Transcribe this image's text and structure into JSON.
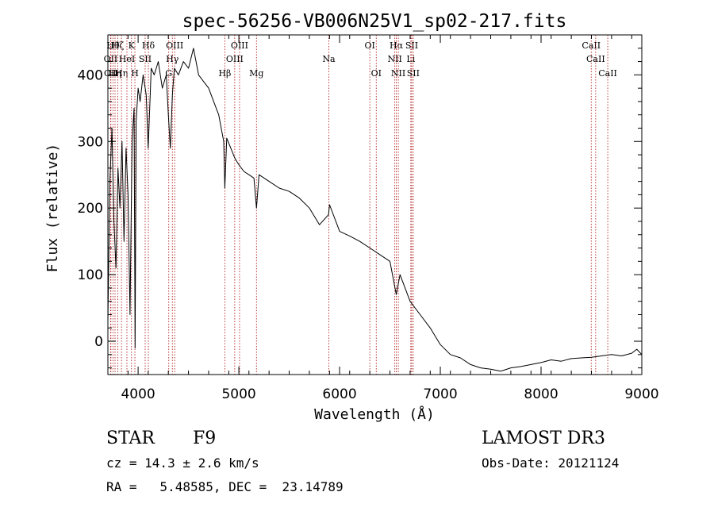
{
  "chart_data": {
    "type": "line",
    "title": "spec-56256-VB006N25V1_sp02-217.fits",
    "xlabel": "Wavelength (Å)",
    "ylabel": "Flux (relative)",
    "xlim": [
      3700,
      9000
    ],
    "ylim": [
      -50,
      460
    ],
    "xticks": [
      4000,
      5000,
      6000,
      7000,
      8000,
      9000
    ],
    "yticks": [
      0,
      100,
      200,
      300,
      400
    ],
    "line_color": "#000000",
    "marker_color": "#b22222",
    "series": [
      {
        "name": "spectrum",
        "x": [
          3700,
          3720,
          3740,
          3760,
          3780,
          3800,
          3820,
          3840,
          3860,
          3880,
          3900,
          3920,
          3940,
          3960,
          3970,
          3980,
          4000,
          4020,
          4050,
          4080,
          4100,
          4130,
          4160,
          4200,
          4240,
          4280,
          4300,
          4320,
          4340,
          4360,
          4400,
          4450,
          4500,
          4550,
          4600,
          4650,
          4700,
          4750,
          4800,
          4850,
          4861,
          4880,
          4920,
          4960,
          5000,
          5050,
          5100,
          5150,
          5175,
          5200,
          5300,
          5400,
          5500,
          5600,
          5700,
          5800,
          5890,
          5900,
          6000,
          6100,
          6200,
          6300,
          6400,
          6500,
          6563,
          6600,
          6650,
          6700,
          6800,
          6900,
          7000,
          7100,
          7200,
          7300,
          7400,
          7500,
          7600,
          7700,
          7800,
          7900,
          8000,
          8100,
          8200,
          8300,
          8400,
          8500,
          8600,
          8700,
          8800,
          8900,
          8950,
          9000
        ],
        "y": [
          30,
          240,
          320,
          180,
          110,
          260,
          200,
          300,
          150,
          290,
          220,
          40,
          300,
          350,
          -10,
          330,
          380,
          360,
          400,
          370,
          290,
          410,
          400,
          420,
          380,
          400,
          340,
          290,
          370,
          410,
          400,
          420,
          410,
          440,
          400,
          390,
          380,
          360,
          340,
          300,
          230,
          305,
          290,
          275,
          265,
          255,
          250,
          245,
          200,
          250,
          240,
          230,
          225,
          215,
          200,
          175,
          190,
          205,
          165,
          158,
          150,
          140,
          130,
          120,
          70,
          100,
          80,
          60,
          40,
          20,
          -5,
          -20,
          -25,
          -35,
          -40,
          -42,
          -45,
          -40,
          -38,
          -35,
          -32,
          -28,
          -30,
          -26,
          -25,
          -24,
          -22,
          -20,
          -22,
          -18,
          -12,
          -20
        ]
      }
    ],
    "line_markers": [
      {
        "wavelength": 3727,
        "label": "OII",
        "row": 2
      },
      {
        "wavelength": 3730,
        "label": "OII",
        "row": 3
      },
      {
        "wavelength": 3750,
        "label": "Hθ",
        "row": 1
      },
      {
        "wavelength": 3771,
        "label": "Hη",
        "row": 3
      },
      {
        "wavelength": 3798,
        "label": "Hζ",
        "row": 1
      },
      {
        "wavelength": 3835,
        "label": "Hη",
        "row": 3
      },
      {
        "wavelength": 3889,
        "label": "HeI",
        "row": 2
      },
      {
        "wavelength": 3934,
        "label": "K",
        "row": 1
      },
      {
        "wavelength": 3968,
        "label": "H",
        "row": 3
      },
      {
        "wavelength": 4070,
        "label": "SII",
        "row": 2
      },
      {
        "wavelength": 4102,
        "label": "Hδ",
        "row": 1
      },
      {
        "wavelength": 4304,
        "label": "G",
        "row": 3
      },
      {
        "wavelength": 4340,
        "label": "Hγ",
        "row": 2
      },
      {
        "wavelength": 4363,
        "label": "OIII",
        "row": 1
      },
      {
        "wavelength": 4861,
        "label": "Hβ",
        "row": 3
      },
      {
        "wavelength": 4959,
        "label": "OIII",
        "row": 2
      },
      {
        "wavelength": 5007,
        "label": "OIII",
        "row": 1
      },
      {
        "wavelength": 5175,
        "label": "Mg",
        "row": 3
      },
      {
        "wavelength": 5893,
        "label": "Na",
        "row": 2
      },
      {
        "wavelength": 6300,
        "label": "OI",
        "row": 1
      },
      {
        "wavelength": 6364,
        "label": "OI",
        "row": 3
      },
      {
        "wavelength": 6548,
        "label": "NII",
        "row": 2
      },
      {
        "wavelength": 6563,
        "label": "Hα",
        "row": 1
      },
      {
        "wavelength": 6583,
        "label": "NII",
        "row": 3
      },
      {
        "wavelength": 6707,
        "label": "Li",
        "row": 2
      },
      {
        "wavelength": 6716,
        "label": "SII",
        "row": 1
      },
      {
        "wavelength": 6731,
        "label": "SII",
        "row": 3
      },
      {
        "wavelength": 8498,
        "label": "CaII",
        "row": 1
      },
      {
        "wavelength": 8542,
        "label": "CaII",
        "row": 2
      },
      {
        "wavelength": 8662,
        "label": "CaII",
        "row": 3
      }
    ]
  },
  "info": {
    "object_class": "STAR",
    "subclass": "F9",
    "survey": "LAMOST DR3",
    "cz": "cz = 14.3 ± 2.6 km/s",
    "obs_date": "Obs-Date: 20121124",
    "coords": "RA =   5.48585, DEC =  23.14789"
  }
}
